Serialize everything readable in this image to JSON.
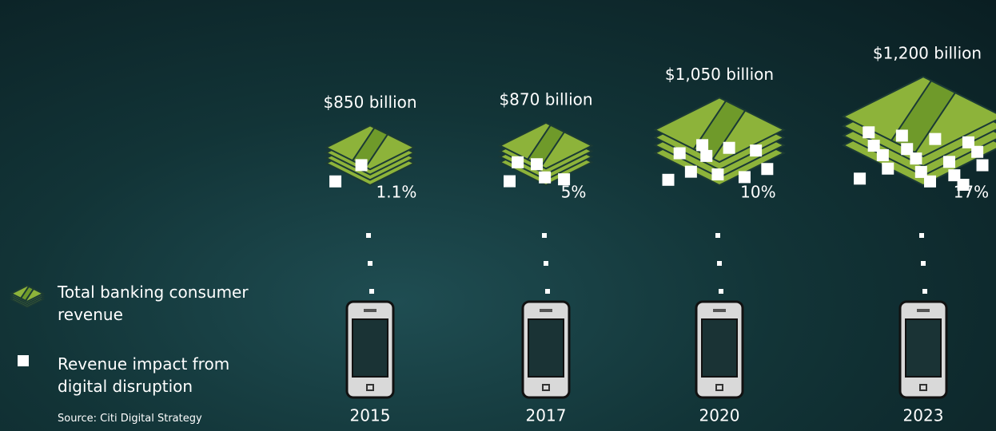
{
  "chart_data": {
    "type": "pictograph",
    "categories": [
      "2015",
      "2017",
      "2020",
      "2023"
    ],
    "series": [
      {
        "name": "Total banking consumer revenue",
        "color": "#8db33a",
        "values": [
          850,
          870,
          1050,
          1200
        ],
        "value_labels": [
          "$850 billion",
          "$870 billion",
          "$1,050 billion",
          "$1,200 billion"
        ]
      },
      {
        "name": "Revenue impact from digital disruption",
        "color": "#ffffff",
        "values": [
          1.1,
          5,
          10,
          17
        ],
        "value_labels": [
          "1.1%",
          "5%",
          "10%",
          "17%"
        ]
      }
    ],
    "source": "Source: Citi Digital Strategy"
  }
}
